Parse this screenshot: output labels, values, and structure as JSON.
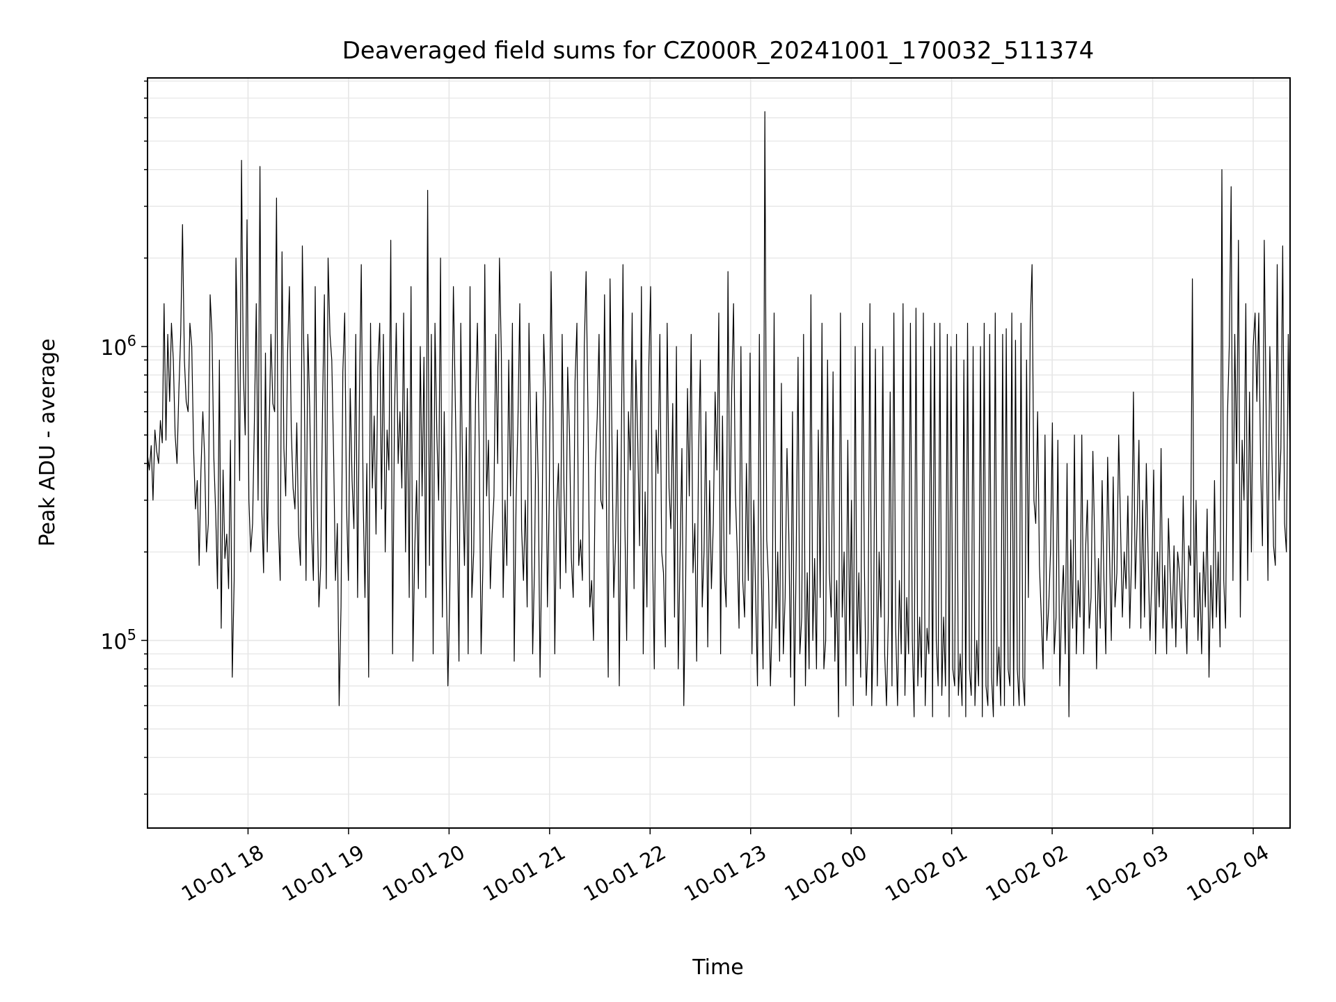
{
  "chart_data": {
    "type": "line",
    "title": "Deaveraged field sums for CZ000R_20241001_170032_511374",
    "xlabel": "Time",
    "ylabel": "Peak ADU - average",
    "x_ticks": [
      "10-01 18",
      "10-01 19",
      "10-01 20",
      "10-01 21",
      "10-01 22",
      "10-01 23",
      "10-02 00",
      "10-02 01",
      "10-02 02",
      "10-02 03",
      "10-02 04"
    ],
    "y_ticks": [
      {
        "value": 100000,
        "base": "10",
        "exp": "5"
      },
      {
        "value": 1000000,
        "base": "10",
        "exp": "6"
      }
    ],
    "yscale": "log",
    "xlim": [
      "2024-10-01 17:00",
      "2024-10-02 04:22"
    ],
    "ylim": [
      23000,
      8200000
    ],
    "grid": true,
    "line_color": "#000000",
    "grid_color": "#e6e6e6",
    "series": [
      {
        "x_start": "2024-10-01 17:00",
        "x_end": "2024-10-02 04:22",
        "values": [
          430000,
          380000,
          460000,
          300000,
          520000,
          440000,
          400000,
          560000,
          470000,
          1400000,
          480000,
          1100000,
          650000,
          1200000,
          900000,
          500000,
          400000,
          700000,
          1100000,
          2600000,
          900000,
          650000,
          600000,
          1200000,
          1000000,
          450000,
          280000,
          350000,
          180000,
          380000,
          600000,
          420000,
          200000,
          250000,
          1500000,
          1100000,
          420000,
          270000,
          150000,
          900000,
          110000,
          380000,
          190000,
          230000,
          150000,
          480000,
          75000,
          160000,
          2000000,
          900000,
          350000,
          4300000,
          820000,
          500000,
          2700000,
          300000,
          200000,
          250000,
          560000,
          1400000,
          300000,
          4100000,
          280000,
          170000,
          950000,
          200000,
          520000,
          1100000,
          640000,
          600000,
          3200000,
          250000,
          160000,
          2100000,
          450000,
          310000,
          950000,
          1600000,
          520000,
          330000,
          280000,
          550000,
          230000,
          180000,
          2200000,
          820000,
          160000,
          1100000,
          620000,
          240000,
          160000,
          1600000,
          310000,
          130000,
          180000,
          640000,
          1500000,
          150000,
          2000000,
          1100000,
          900000,
          420000,
          160000,
          250000,
          60000,
          130000,
          820000,
          1300000,
          290000,
          160000,
          720000,
          350000,
          240000,
          1100000,
          140000,
          700000,
          1900000,
          300000,
          140000,
          400000,
          75000,
          1200000,
          330000,
          580000,
          230000,
          850000,
          1200000,
          280000,
          1100000,
          200000,
          520000,
          380000,
          2300000,
          90000,
          580000,
          1200000,
          400000,
          600000,
          330000,
          1300000,
          200000,
          720000,
          140000,
          1600000,
          85000,
          200000,
          350000,
          150000,
          1000000,
          310000,
          920000,
          140000,
          3400000,
          180000,
          1100000,
          90000,
          1200000,
          500000,
          300000,
          2000000,
          120000,
          600000,
          180000,
          70000,
          140000,
          450000,
          1600000,
          650000,
          280000,
          85000,
          1200000,
          340000,
          180000,
          530000,
          90000,
          1600000,
          140000,
          200000,
          650000,
          1200000,
          460000,
          90000,
          180000,
          1900000,
          310000,
          480000,
          150000,
          230000,
          310000,
          1100000,
          400000,
          2000000,
          950000,
          140000,
          300000,
          180000,
          900000,
          310000,
          1200000,
          85000,
          300000,
          550000,
          1400000,
          240000,
          160000,
          300000,
          130000,
          1200000,
          480000,
          90000,
          180000,
          700000,
          350000,
          75000,
          210000,
          1100000,
          650000,
          130000,
          300000,
          1800000,
          600000,
          90000,
          280000,
          400000,
          150000,
          1100000,
          330000,
          170000,
          850000,
          500000,
          190000,
          140000,
          760000,
          1200000,
          180000,
          220000,
          160000,
          1000000,
          1800000,
          600000,
          130000,
          160000,
          100000,
          390000,
          570000,
          1100000,
          300000,
          280000,
          1500000,
          320000,
          75000,
          1700000,
          500000,
          140000,
          220000,
          520000,
          70000,
          380000,
          1900000,
          260000,
          100000,
          600000,
          380000,
          1300000,
          150000,
          900000,
          480000,
          210000,
          1600000,
          90000,
          320000,
          130000,
          850000,
          1600000,
          210000,
          80000,
          520000,
          370000,
          1100000,
          200000,
          170000,
          95000,
          1200000,
          330000,
          240000,
          640000,
          120000,
          1000000,
          80000,
          200000,
          450000,
          60000,
          150000,
          720000,
          310000,
          1100000,
          170000,
          250000,
          85000,
          430000,
          900000,
          130000,
          200000,
          600000,
          95000,
          350000,
          150000,
          250000,
          700000,
          380000,
          1300000,
          90000,
          580000,
          170000,
          130000,
          1800000,
          230000,
          700000,
          1400000,
          320000,
          200000,
          110000,
          1000000,
          160000,
          120000,
          400000,
          160000,
          950000,
          90000,
          300000,
          140000,
          70000,
          1100000,
          180000,
          80000,
          6300000,
          220000,
          160000,
          70000,
          120000,
          1300000,
          110000,
          200000,
          85000,
          750000,
          90000,
          140000,
          450000,
          230000,
          75000,
          600000,
          60000,
          190000,
          920000,
          90000,
          120000,
          1100000,
          70000,
          170000,
          80000,
          1500000,
          100000,
          190000,
          80000,
          520000,
          140000,
          1200000,
          80000,
          100000,
          900000,
          170000,
          120000,
          820000,
          85000,
          160000,
          55000,
          1300000,
          120000,
          200000,
          70000,
          480000,
          100000,
          300000,
          60000,
          1000000,
          90000,
          170000,
          75000,
          1200000,
          180000,
          65000,
          100000,
          1400000,
          60000,
          120000,
          980000,
          70000,
          200000,
          120000,
          1000000,
          90000,
          60000,
          120000,
          700000,
          70000,
          1300000,
          110000,
          60000,
          160000,
          90000,
          1400000,
          65000,
          140000,
          90000,
          1200000,
          100000,
          55000,
          1350000,
          70000,
          120000,
          75000,
          1300000,
          60000,
          110000,
          90000,
          1000000,
          55000,
          1200000,
          100000,
          70000,
          1200000,
          65000,
          120000,
          70000,
          1100000,
          55000,
          1000000,
          80000,
          70000,
          1100000,
          65000,
          90000,
          60000,
          900000,
          55000,
          1200000,
          80000,
          65000,
          1000000,
          60000,
          100000,
          70000,
          1000000,
          55000,
          1200000,
          70000,
          60000,
          1100000,
          75000,
          55000,
          1300000,
          70000,
          95000,
          60000,
          1100000,
          60000,
          1150000,
          80000,
          70000,
          1300000,
          60000,
          1050000,
          80000,
          60000,
          1200000,
          75000,
          60000,
          900000,
          140000,
          1200000,
          1900000,
          300000,
          250000,
          600000,
          180000,
          120000,
          80000,
          500000,
          100000,
          130000,
          200000,
          550000,
          90000,
          120000,
          480000,
          70000,
          130000,
          180000,
          90000,
          400000,
          55000,
          220000,
          110000,
          500000,
          90000,
          160000,
          120000,
          500000,
          90000,
          200000,
          300000,
          110000,
          140000,
          440000,
          210000,
          80000,
          190000,
          110000,
          350000,
          160000,
          90000,
          420000,
          200000,
          100000,
          360000,
          130000,
          170000,
          500000,
          250000,
          120000,
          200000,
          150000,
          310000,
          110000,
          190000,
          700000,
          150000,
          250000,
          480000,
          110000,
          300000,
          120000,
          400000,
          190000,
          100000,
          170000,
          380000,
          90000,
          200000,
          130000,
          450000,
          110000,
          180000,
          90000,
          260000,
          160000,
          110000,
          210000,
          95000,
          200000,
          170000,
          110000,
          310000,
          140000,
          90000,
          210000,
          180000,
          1700000,
          120000,
          300000,
          100000,
          170000,
          90000,
          200000,
          130000,
          280000,
          75000,
          180000,
          110000,
          350000,
          120000,
          200000,
          95000,
          4000000,
          160000,
          110000,
          580000,
          1000000,
          3500000,
          160000,
          1100000,
          400000,
          2300000,
          120000,
          480000,
          300000,
          1400000,
          160000,
          700000,
          200000,
          1000000,
          1300000,
          650000,
          1300000,
          400000,
          210000,
          2300000,
          600000,
          160000,
          1000000,
          500000,
          210000,
          180000,
          1900000,
          300000,
          450000,
          2200000,
          250000,
          200000,
          1100000,
          400000
        ]
      }
    ]
  }
}
